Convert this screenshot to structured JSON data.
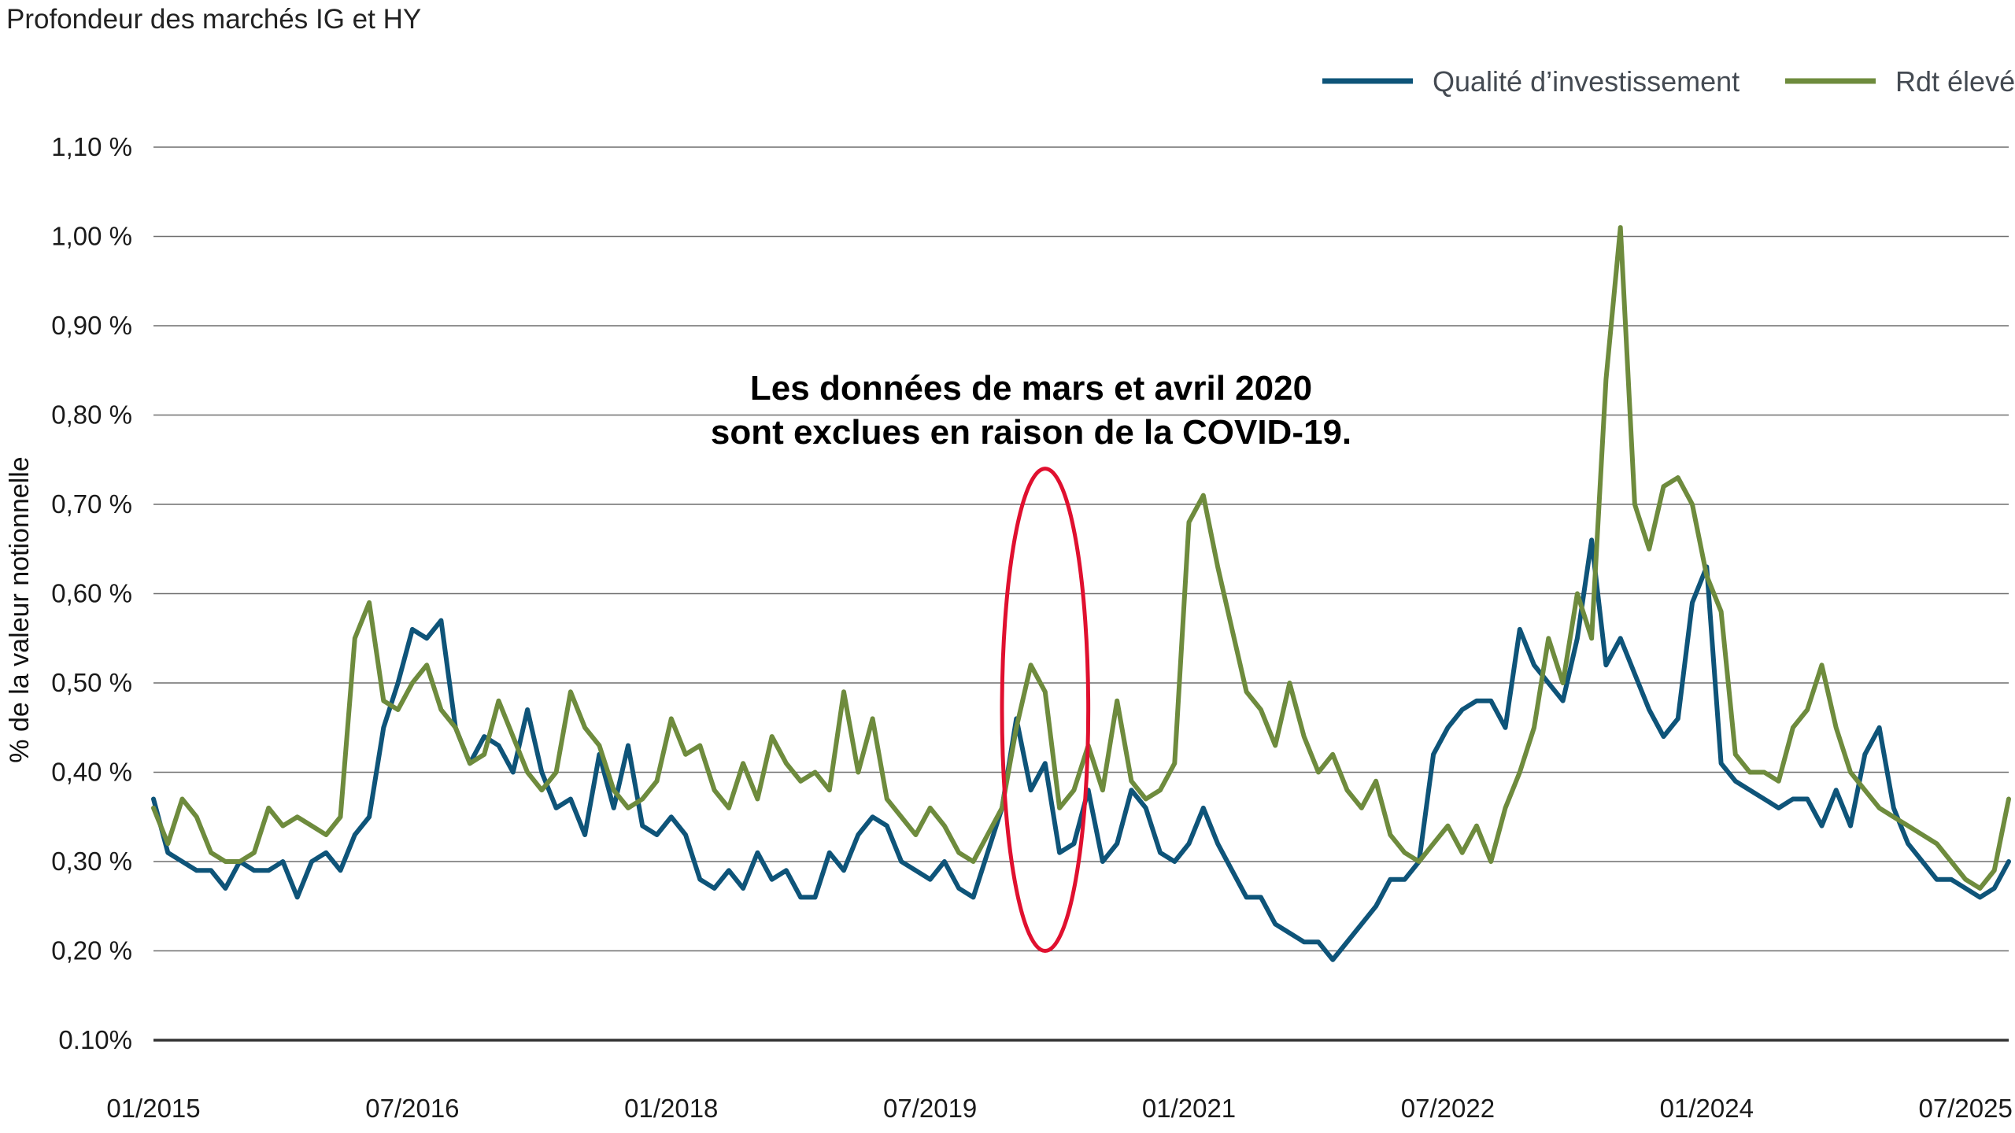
{
  "chart_data": {
    "type": "line",
    "title": "Profondeur des marchés IG et HY",
    "ylabel": "% de la valeur notionnelle",
    "xlabel": "",
    "ylim": [
      0.1,
      1.1
    ],
    "yticks": [
      {
        "value": 1.1,
        "label": "1,10 %"
      },
      {
        "value": 1.0,
        "label": "1,00 %"
      },
      {
        "value": 0.9,
        "label": "0,90 %"
      },
      {
        "value": 0.8,
        "label": "0,80 %"
      },
      {
        "value": 0.7,
        "label": "0,70 %"
      },
      {
        "value": 0.6,
        "label": "0,60 %"
      },
      {
        "value": 0.5,
        "label": "0,50 %"
      },
      {
        "value": 0.4,
        "label": "0,40 %"
      },
      {
        "value": 0.3,
        "label": "0,30 %"
      },
      {
        "value": 0.2,
        "label": "0,20 %"
      },
      {
        "value": 0.1,
        "label": "0.10%"
      }
    ],
    "xlim": [
      "2015-01",
      "2025-10"
    ],
    "xticks": [
      {
        "date": "2015-01",
        "label": "01/2015"
      },
      {
        "date": "2016-07",
        "label": "07/2016"
      },
      {
        "date": "2018-01",
        "label": "01/2018"
      },
      {
        "date": "2019-07",
        "label": "07/2019"
      },
      {
        "date": "2021-01",
        "label": "01/2021"
      },
      {
        "date": "2022-07",
        "label": "07/2022"
      },
      {
        "date": "2024-01",
        "label": "01/2024"
      },
      {
        "date": "2025-07",
        "label": "07/2025"
      }
    ],
    "grid": "horizontal",
    "legend_position": "top-right",
    "series": [
      {
        "name": "Qualité d’investissement",
        "color": "#0e5479",
        "points": [
          [
            "2015-01",
            0.37
          ],
          [
            "2015-02",
            0.31
          ],
          [
            "2015-03",
            0.3
          ],
          [
            "2015-04",
            0.29
          ],
          [
            "2015-05",
            0.29
          ],
          [
            "2015-06",
            0.27
          ],
          [
            "2015-07",
            0.3
          ],
          [
            "2015-08",
            0.29
          ],
          [
            "2015-09",
            0.29
          ],
          [
            "2015-10",
            0.3
          ],
          [
            "2015-11",
            0.26
          ],
          [
            "2015-12",
            0.3
          ],
          [
            "2016-01",
            0.31
          ],
          [
            "2016-02",
            0.29
          ],
          [
            "2016-03",
            0.33
          ],
          [
            "2016-04",
            0.35
          ],
          [
            "2016-05",
            0.45
          ],
          [
            "2016-06",
            0.5
          ],
          [
            "2016-07",
            0.56
          ],
          [
            "2016-08",
            0.55
          ],
          [
            "2016-09",
            0.57
          ],
          [
            "2016-10",
            0.45
          ],
          [
            "2016-11",
            0.41
          ],
          [
            "2016-12",
            0.44
          ],
          [
            "2017-01",
            0.43
          ],
          [
            "2017-02",
            0.4
          ],
          [
            "2017-03",
            0.47
          ],
          [
            "2017-04",
            0.4
          ],
          [
            "2017-05",
            0.36
          ],
          [
            "2017-06",
            0.37
          ],
          [
            "2017-07",
            0.33
          ],
          [
            "2017-08",
            0.42
          ],
          [
            "2017-09",
            0.36
          ],
          [
            "2017-10",
            0.43
          ],
          [
            "2017-11",
            0.34
          ],
          [
            "2017-12",
            0.33
          ],
          [
            "2018-01",
            0.35
          ],
          [
            "2018-02",
            0.33
          ],
          [
            "2018-03",
            0.28
          ],
          [
            "2018-04",
            0.27
          ],
          [
            "2018-05",
            0.29
          ],
          [
            "2018-06",
            0.27
          ],
          [
            "2018-07",
            0.31
          ],
          [
            "2018-08",
            0.28
          ],
          [
            "2018-09",
            0.29
          ],
          [
            "2018-10",
            0.26
          ],
          [
            "2018-11",
            0.26
          ],
          [
            "2018-12",
            0.31
          ],
          [
            "2019-01",
            0.29
          ],
          [
            "2019-02",
            0.33
          ],
          [
            "2019-03",
            0.35
          ],
          [
            "2019-04",
            0.34
          ],
          [
            "2019-05",
            0.3
          ],
          [
            "2019-06",
            0.29
          ],
          [
            "2019-07",
            0.28
          ],
          [
            "2019-08",
            0.3
          ],
          [
            "2019-09",
            0.27
          ],
          [
            "2019-10",
            0.26
          ],
          [
            "2019-11",
            0.31
          ],
          [
            "2019-12",
            0.36
          ],
          [
            "2020-01",
            0.46
          ],
          [
            "2020-02",
            0.38
          ],
          [
            "2020-03",
            0.41
          ],
          [
            "2020-04",
            0.31
          ],
          [
            "2020-05",
            0.32
          ],
          [
            "2020-06",
            0.38
          ],
          [
            "2020-07",
            0.3
          ],
          [
            "2020-08",
            0.32
          ],
          [
            "2020-09",
            0.38
          ],
          [
            "2020-10",
            0.36
          ],
          [
            "2020-11",
            0.31
          ],
          [
            "2020-12",
            0.3
          ],
          [
            "2021-01",
            0.32
          ],
          [
            "2021-02",
            0.36
          ],
          [
            "2021-03",
            0.32
          ],
          [
            "2021-04",
            0.29
          ],
          [
            "2021-05",
            0.26
          ],
          [
            "2021-06",
            0.26
          ],
          [
            "2021-07",
            0.23
          ],
          [
            "2021-08",
            0.22
          ],
          [
            "2021-09",
            0.21
          ],
          [
            "2021-10",
            0.21
          ],
          [
            "2021-11",
            0.19
          ],
          [
            "2021-12",
            0.21
          ],
          [
            "2022-01",
            0.23
          ],
          [
            "2022-02",
            0.25
          ],
          [
            "2022-03",
            0.28
          ],
          [
            "2022-04",
            0.28
          ],
          [
            "2022-05",
            0.3
          ],
          [
            "2022-06",
            0.42
          ],
          [
            "2022-07",
            0.45
          ],
          [
            "2022-08",
            0.47
          ],
          [
            "2022-09",
            0.48
          ],
          [
            "2022-10",
            0.48
          ],
          [
            "2022-11",
            0.45
          ],
          [
            "2022-12",
            0.56
          ],
          [
            "2023-01",
            0.52
          ],
          [
            "2023-02",
            0.5
          ],
          [
            "2023-03",
            0.48
          ],
          [
            "2023-04",
            0.55
          ],
          [
            "2023-05",
            0.66
          ],
          [
            "2023-06",
            0.52
          ],
          [
            "2023-07",
            0.55
          ],
          [
            "2023-08",
            0.51
          ],
          [
            "2023-09",
            0.47
          ],
          [
            "2023-10",
            0.44
          ],
          [
            "2023-11",
            0.46
          ],
          [
            "2023-12",
            0.59
          ],
          [
            "2024-01",
            0.63
          ],
          [
            "2024-02",
            0.41
          ],
          [
            "2024-03",
            0.39
          ],
          [
            "2024-04",
            0.38
          ],
          [
            "2024-05",
            0.37
          ],
          [
            "2024-06",
            0.36
          ],
          [
            "2024-07",
            0.37
          ],
          [
            "2024-08",
            0.37
          ],
          [
            "2024-09",
            0.34
          ],
          [
            "2024-10",
            0.38
          ],
          [
            "2024-11",
            0.34
          ],
          [
            "2024-12",
            0.42
          ],
          [
            "2025-01",
            0.45
          ],
          [
            "2025-02",
            0.36
          ],
          [
            "2025-03",
            0.32
          ],
          [
            "2025-04",
            0.3
          ],
          [
            "2025-05",
            0.28
          ],
          [
            "2025-06",
            0.28
          ],
          [
            "2025-07",
            0.27
          ],
          [
            "2025-08",
            0.26
          ],
          [
            "2025-09",
            0.27
          ],
          [
            "2025-10",
            0.3
          ]
        ]
      },
      {
        "name": "Rdt élevé",
        "color": "#6e8b3d",
        "points": [
          [
            "2015-01",
            0.36
          ],
          [
            "2015-02",
            0.32
          ],
          [
            "2015-03",
            0.37
          ],
          [
            "2015-04",
            0.35
          ],
          [
            "2015-05",
            0.31
          ],
          [
            "2015-06",
            0.3
          ],
          [
            "2015-07",
            0.3
          ],
          [
            "2015-08",
            0.31
          ],
          [
            "2015-09",
            0.36
          ],
          [
            "2015-10",
            0.34
          ],
          [
            "2015-11",
            0.35
          ],
          [
            "2015-12",
            0.34
          ],
          [
            "2016-01",
            0.33
          ],
          [
            "2016-02",
            0.35
          ],
          [
            "2016-03",
            0.55
          ],
          [
            "2016-04",
            0.59
          ],
          [
            "2016-05",
            0.48
          ],
          [
            "2016-06",
            0.47
          ],
          [
            "2016-07",
            0.5
          ],
          [
            "2016-08",
            0.52
          ],
          [
            "2016-09",
            0.47
          ],
          [
            "2016-10",
            0.45
          ],
          [
            "2016-11",
            0.41
          ],
          [
            "2016-12",
            0.42
          ],
          [
            "2017-01",
            0.48
          ],
          [
            "2017-02",
            0.44
          ],
          [
            "2017-03",
            0.4
          ],
          [
            "2017-04",
            0.38
          ],
          [
            "2017-05",
            0.4
          ],
          [
            "2017-06",
            0.49
          ],
          [
            "2017-07",
            0.45
          ],
          [
            "2017-08",
            0.43
          ],
          [
            "2017-09",
            0.38
          ],
          [
            "2017-10",
            0.36
          ],
          [
            "2017-11",
            0.37
          ],
          [
            "2017-12",
            0.39
          ],
          [
            "2018-01",
            0.46
          ],
          [
            "2018-02",
            0.42
          ],
          [
            "2018-03",
            0.43
          ],
          [
            "2018-04",
            0.38
          ],
          [
            "2018-05",
            0.36
          ],
          [
            "2018-06",
            0.41
          ],
          [
            "2018-07",
            0.37
          ],
          [
            "2018-08",
            0.44
          ],
          [
            "2018-09",
            0.41
          ],
          [
            "2018-10",
            0.39
          ],
          [
            "2018-11",
            0.4
          ],
          [
            "2018-12",
            0.38
          ],
          [
            "2019-01",
            0.49
          ],
          [
            "2019-02",
            0.4
          ],
          [
            "2019-03",
            0.46
          ],
          [
            "2019-04",
            0.37
          ],
          [
            "2019-05",
            0.35
          ],
          [
            "2019-06",
            0.33
          ],
          [
            "2019-07",
            0.36
          ],
          [
            "2019-08",
            0.34
          ],
          [
            "2019-09",
            0.31
          ],
          [
            "2019-10",
            0.3
          ],
          [
            "2019-11",
            0.33
          ],
          [
            "2019-12",
            0.36
          ],
          [
            "2020-01",
            0.45
          ],
          [
            "2020-02",
            0.52
          ],
          [
            "2020-03",
            0.49
          ],
          [
            "2020-04",
            0.36
          ],
          [
            "2020-05",
            0.38
          ],
          [
            "2020-06",
            0.43
          ],
          [
            "2020-07",
            0.38
          ],
          [
            "2020-08",
            0.48
          ],
          [
            "2020-09",
            0.39
          ],
          [
            "2020-10",
            0.37
          ],
          [
            "2020-11",
            0.38
          ],
          [
            "2020-12",
            0.41
          ],
          [
            "2021-01",
            0.68
          ],
          [
            "2021-02",
            0.71
          ],
          [
            "2021-03",
            0.63
          ],
          [
            "2021-04",
            0.56
          ],
          [
            "2021-05",
            0.49
          ],
          [
            "2021-06",
            0.47
          ],
          [
            "2021-07",
            0.43
          ],
          [
            "2021-08",
            0.5
          ],
          [
            "2021-09",
            0.44
          ],
          [
            "2021-10",
            0.4
          ],
          [
            "2021-11",
            0.42
          ],
          [
            "2021-12",
            0.38
          ],
          [
            "2022-01",
            0.36
          ],
          [
            "2022-02",
            0.39
          ],
          [
            "2022-03",
            0.33
          ],
          [
            "2022-04",
            0.31
          ],
          [
            "2022-05",
            0.3
          ],
          [
            "2022-06",
            0.32
          ],
          [
            "2022-07",
            0.34
          ],
          [
            "2022-08",
            0.31
          ],
          [
            "2022-09",
            0.34
          ],
          [
            "2022-10",
            0.3
          ],
          [
            "2022-11",
            0.36
          ],
          [
            "2022-12",
            0.4
          ],
          [
            "2023-01",
            0.45
          ],
          [
            "2023-02",
            0.55
          ],
          [
            "2023-03",
            0.5
          ],
          [
            "2023-04",
            0.6
          ],
          [
            "2023-05",
            0.55
          ],
          [
            "2023-06",
            0.84
          ],
          [
            "2023-07",
            1.01
          ],
          [
            "2023-08",
            0.7
          ],
          [
            "2023-09",
            0.65
          ],
          [
            "2023-10",
            0.72
          ],
          [
            "2023-11",
            0.73
          ],
          [
            "2023-12",
            0.7
          ],
          [
            "2024-01",
            0.62
          ],
          [
            "2024-02",
            0.58
          ],
          [
            "2024-03",
            0.42
          ],
          [
            "2024-04",
            0.4
          ],
          [
            "2024-05",
            0.4
          ],
          [
            "2024-06",
            0.39
          ],
          [
            "2024-07",
            0.45
          ],
          [
            "2024-08",
            0.47
          ],
          [
            "2024-09",
            0.52
          ],
          [
            "2024-10",
            0.45
          ],
          [
            "2024-11",
            0.4
          ],
          [
            "2024-12",
            0.38
          ],
          [
            "2025-01",
            0.36
          ],
          [
            "2025-02",
            0.35
          ],
          [
            "2025-03",
            0.34
          ],
          [
            "2025-04",
            0.33
          ],
          [
            "2025-05",
            0.32
          ],
          [
            "2025-06",
            0.3
          ],
          [
            "2025-07",
            0.28
          ],
          [
            "2025-08",
            0.27
          ],
          [
            "2025-09",
            0.29
          ],
          [
            "2025-10",
            0.37
          ]
        ]
      }
    ],
    "annotation": {
      "lines": [
        "Les données de mars et avril 2020",
        "sont exclues en raison de la COVID-19."
      ],
      "highlight_color": "#e0102f",
      "highlight_range": [
        "2019-12",
        "2020-06"
      ],
      "highlight_ylim": [
        0.2,
        0.74
      ]
    }
  }
}
